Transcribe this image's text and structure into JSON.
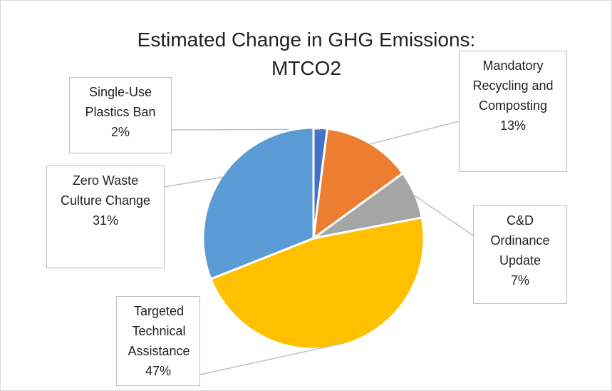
{
  "chart_data": {
    "type": "pie",
    "title": "Estimated Change in GHG Emissions: MTCO2",
    "categories": [
      "Single-Use Plastics Ban",
      "Mandatory Recycling and Composting",
      "C&D Ordinance Update",
      "Targeted Technical Assistance",
      "Zero Waste Culture Change"
    ],
    "values": [
      2,
      13,
      7,
      47,
      31
    ],
    "value_labels": [
      "2%",
      "13%",
      "7%",
      "47%",
      "31%"
    ],
    "colors": [
      "#4472c4",
      "#ed7d31",
      "#a5a5a5",
      "#ffc000",
      "#5b9bd5"
    ]
  }
}
